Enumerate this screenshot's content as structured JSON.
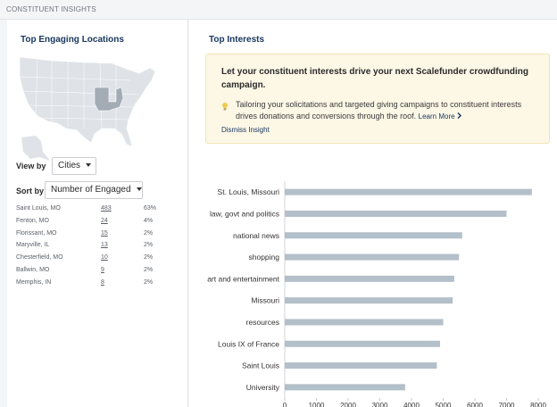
{
  "section": {
    "title": "CONSTITUENT INSIGHTS"
  },
  "locations": {
    "title": "Top Engaging Locations",
    "view_by_label": "View by",
    "view_by_value": "Cities",
    "sort_by_label": "Sort by",
    "sort_by_value": "Number of Engaged",
    "rows": [
      {
        "name": "Saint Louis, MO",
        "count": "483",
        "pct": "63%"
      },
      {
        "name": "Fenton, MO",
        "count": "24",
        "pct": "4%"
      },
      {
        "name": "Florissant, MO",
        "count": "15",
        "pct": "2%"
      },
      {
        "name": "Maryville, IL",
        "count": "13",
        "pct": "2%"
      },
      {
        "name": "Chesterfield, MO",
        "count": "10",
        "pct": "2%"
      },
      {
        "name": "Ballwin, MO",
        "count": "9",
        "pct": "2%"
      },
      {
        "name": "Memphis, IN",
        "count": "8",
        "pct": "2%"
      }
    ]
  },
  "interests": {
    "title": "Top Interests",
    "insight": {
      "title": "Let your constituent interests drive your next Scalefunder crowdfunding campaign.",
      "body": "Tailoring your solicitations and targeted giving campaigns to constituent interests drives donations and conversions through the roof.",
      "learn_more": "Learn More",
      "dismiss": "Dismiss Insight"
    }
  },
  "icons": {
    "bulb": "lightbulb-icon",
    "chevron": "chevron-right-icon",
    "caret": "caret-down-icon"
  },
  "colors": {
    "bar": "#b3bfc9",
    "title": "#17365d",
    "insight_bg": "#fdf7e6",
    "map_base": "#dfe3e7",
    "map_highlight": "#a3acb5"
  },
  "chart_data": {
    "type": "bar",
    "orientation": "horizontal",
    "categories": [
      "St. Louis, Missouri",
      "law, govt and politics",
      "national news",
      "shopping",
      "art and entertainment",
      "Missouri",
      "resources",
      "Louis IX of France",
      "Saint Louis",
      "University"
    ],
    "values": [
      7800,
      7000,
      5600,
      5500,
      5350,
      5300,
      5000,
      4900,
      4800,
      3800
    ],
    "xlim": [
      0,
      8000
    ],
    "xticks": [
      "0",
      "1000",
      "2000",
      "3000",
      "4000",
      "5000",
      "6000",
      "7000",
      "8000"
    ],
    "grid": false
  }
}
